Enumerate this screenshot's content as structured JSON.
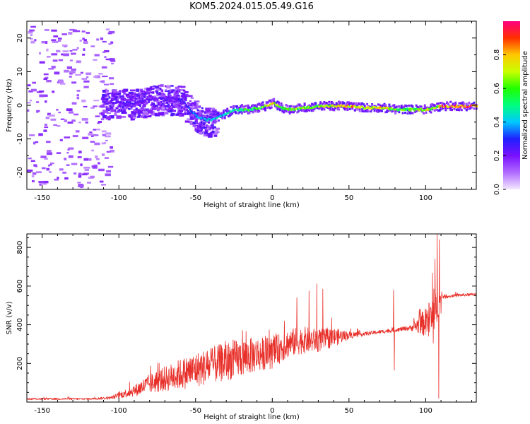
{
  "title": "KOM5.2024.015.05.49.G16",
  "chart_data": [
    {
      "type": "heatmap",
      "xlabel": "Height of straight line (km)",
      "ylabel": "Frequency (Hz)",
      "xlim": [
        -160,
        133
      ],
      "ylim": [
        -25,
        25
      ],
      "xticks": [
        -150,
        -100,
        -50,
        0,
        50,
        100
      ],
      "xtick_labels": [
        "-150",
        "-100",
        "-50",
        "0",
        "50",
        "100"
      ],
      "yticks": [
        -20,
        -10,
        0,
        10,
        20
      ],
      "ytick_labels": [
        "-20",
        "-10",
        "0",
        "10",
        "20"
      ],
      "colorbar": {
        "label": "Normalized spectral amplitude",
        "range": [
          0,
          1
        ],
        "ticks": [
          0.0,
          0.2,
          0.4,
          0.6,
          0.8
        ],
        "tick_labels": [
          "0.0",
          "0.2",
          "0.4",
          "0.6",
          "0.8"
        ],
        "colors": [
          "#f4e8ff",
          "#b06cff",
          "#7a10ff",
          "#2020ff",
          "#00c8ff",
          "#00ff80",
          "#20ff00",
          "#c8ff00",
          "#ffc800",
          "#ff3000",
          "#ff0080"
        ]
      },
      "ridge": {
        "x": [
          -110,
          -100,
          -90,
          -80,
          -70,
          -60,
          -55,
          -50,
          -45,
          -40,
          -35,
          -30,
          -25,
          -20,
          -15,
          -10,
          -5,
          0,
          5,
          10,
          20,
          30,
          40,
          50,
          60,
          70,
          80,
          90,
          100,
          105,
          110,
          120,
          133
        ],
        "freq": [
          0.5,
          0.5,
          0.5,
          1.5,
          2,
          1.5,
          -1,
          -3.5,
          -4.5,
          -4.5,
          -3.5,
          -2.5,
          -1.5,
          -1.5,
          -1.5,
          -1,
          -0.5,
          0.5,
          -1,
          -1.5,
          -1,
          -0.5,
          -0.5,
          -0.5,
          -1,
          -1,
          -1.5,
          -1.5,
          -1.5,
          -1,
          -0.5,
          -0.5,
          -0.5
        ],
        "amp": [
          0.22,
          0.22,
          0.24,
          0.22,
          0.22,
          0.25,
          0.3,
          0.38,
          0.4,
          0.4,
          0.42,
          0.42,
          0.5,
          0.55,
          0.55,
          0.6,
          0.7,
          0.72,
          0.6,
          0.62,
          0.65,
          0.68,
          0.7,
          0.8,
          0.7,
          0.78,
          0.6,
          0.62,
          0.7,
          0.62,
          0.85,
          0.88,
          0.9
        ]
      }
    },
    {
      "type": "line",
      "xlabel": "Height of straight line (km)",
      "ylabel": "SNR (v/v)",
      "xlim": [
        -160,
        133
      ],
      "ylim": [
        0,
        870
      ],
      "xticks": [
        -150,
        -100,
        -50,
        0,
        50,
        100
      ],
      "xtick_labels": [
        "-150",
        "-100",
        "-50",
        "0",
        "50",
        "100"
      ],
      "yticks": [
        200,
        400,
        600,
        800
      ],
      "ytick_labels": [
        "200",
        "400",
        "600",
        "800"
      ],
      "color": "#e8302a",
      "envelope": {
        "x": [
          -160,
          -140,
          -120,
          -105,
          -100,
          -90,
          -80,
          -70,
          -60,
          -50,
          -40,
          -30,
          -20,
          -10,
          0,
          10,
          20,
          30,
          40,
          50,
          60,
          70,
          80,
          90,
          100,
          105,
          110,
          115,
          120,
          133
        ],
        "base": [
          15,
          15,
          15,
          20,
          30,
          50,
          80,
          100,
          120,
          140,
          160,
          180,
          200,
          220,
          230,
          280,
          300,
          300,
          320,
          340,
          350,
          360,
          370,
          380,
          390,
          380,
          540,
          545,
          550,
          555
        ],
        "spread": [
          8,
          10,
          10,
          15,
          30,
          60,
          100,
          130,
          160,
          180,
          190,
          200,
          200,
          180,
          160,
          150,
          140,
          120,
          100,
          40,
          20,
          20,
          20,
          25,
          150,
          300,
          30,
          15,
          15,
          15
        ]
      },
      "peaks": [
        {
          "x": 8,
          "y": 420
        },
        {
          "x": 16,
          "y": 540
        },
        {
          "x": 24,
          "y": 575
        },
        {
          "x": 29,
          "y": 612
        },
        {
          "x": 33,
          "y": 585
        },
        {
          "x": 79,
          "y": 580
        },
        {
          "x": 79.5,
          "y": 165
        },
        {
          "x": 96,
          "y": 480
        },
        {
          "x": 103,
          "y": 460
        },
        {
          "x": 106,
          "y": 740
        },
        {
          "x": 107.5,
          "y": 870
        },
        {
          "x": 108.5,
          "y": 20
        },
        {
          "x": 109,
          "y": 840
        },
        {
          "x": 110,
          "y": 460
        }
      ]
    }
  ]
}
